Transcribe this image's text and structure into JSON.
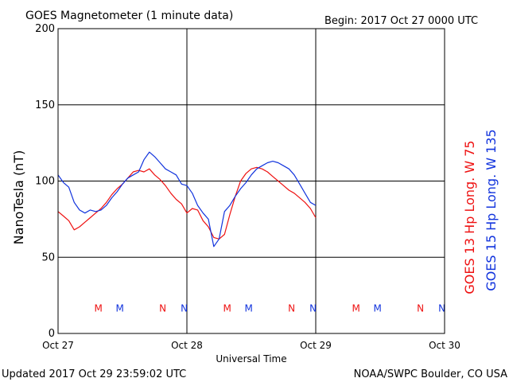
{
  "header": {
    "title": "GOES Magnetometer (1 minute data)",
    "begin": "Begin:  2017 Oct 27 0000 UTC"
  },
  "footer": {
    "updated": "Updated 2017 Oct 29 23:59:02 UTC",
    "source": "NOAA/SWPC Boulder, CO USA"
  },
  "colors": {
    "goes13": "#ee1111",
    "goes15": "#1133dd",
    "axis": "#000000"
  },
  "chart_data": {
    "type": "line",
    "title": "GOES Magnetometer (1 minute data)",
    "xlabel": "Universal Time",
    "ylabel": "NanoTesla (nT)",
    "xlim": [
      0,
      72
    ],
    "x_unit": "hours since 2017 Oct 27 0000 UTC",
    "x_ticks": [
      {
        "x": 0,
        "label": "Oct 27"
      },
      {
        "x": 24,
        "label": "Oct 28"
      },
      {
        "x": 48,
        "label": "Oct 29"
      },
      {
        "x": 72,
        "label": "Oct 30"
      }
    ],
    "ylim": [
      0,
      200
    ],
    "y_ticks": [
      0,
      50,
      100,
      150,
      200
    ],
    "grid": true,
    "series": [
      {
        "name": "GOES 13 Hp",
        "legend_label": "GOES 13 Hp  Long. W 75",
        "color": "#ee1111",
        "x": [
          0,
          1,
          2,
          3,
          4,
          5,
          6,
          7,
          8,
          9,
          10,
          11,
          12,
          13,
          14,
          15,
          16,
          17,
          18,
          19,
          20,
          21,
          22,
          23,
          24,
          25,
          26,
          27,
          28,
          29,
          30,
          31,
          32,
          33,
          34,
          35,
          36,
          37,
          38,
          39,
          40,
          41,
          42,
          43,
          44,
          45,
          46,
          47,
          48
        ],
        "y": [
          80,
          77,
          74,
          68,
          70,
          73,
          76,
          79,
          82,
          86,
          91,
          95,
          98,
          102,
          106,
          107,
          106,
          108,
          104,
          101,
          97,
          92,
          88,
          85,
          79,
          82,
          81,
          74,
          70,
          63,
          62,
          65,
          78,
          90,
          100,
          105,
          108,
          109,
          108,
          106,
          103,
          100,
          97,
          94,
          92,
          89,
          86,
          82,
          76
        ]
      },
      {
        "name": "GOES 15 Hp",
        "legend_label": "GOES 15 Hp  Long. W 135",
        "color": "#1133dd",
        "x": [
          0,
          1,
          2,
          3,
          4,
          5,
          6,
          7,
          8,
          9,
          10,
          11,
          12,
          13,
          14,
          15,
          16,
          17,
          18,
          19,
          20,
          21,
          22,
          23,
          24,
          25,
          26,
          27,
          28,
          29,
          30,
          31,
          32,
          33,
          34,
          35,
          36,
          37,
          38,
          39,
          40,
          41,
          42,
          43,
          44,
          45,
          46,
          47,
          48
        ],
        "y": [
          104,
          99,
          96,
          86,
          81,
          79,
          81,
          80,
          81,
          84,
          89,
          93,
          98,
          102,
          104,
          106,
          114,
          119,
          116,
          112,
          108,
          106,
          104,
          98,
          97,
          92,
          84,
          79,
          75,
          57,
          62,
          80,
          84,
          90,
          95,
          99,
          104,
          108,
          110,
          112,
          113,
          112,
          110,
          108,
          104,
          98,
          92,
          86,
          84
        ]
      }
    ],
    "markers": {
      "y": 17,
      "rows": [
        {
          "x": 7.5,
          "label": "M",
          "series": "GOES 13 Hp"
        },
        {
          "x": 11.5,
          "label": "M",
          "series": "GOES 15 Hp"
        },
        {
          "x": 19.5,
          "label": "N",
          "series": "GOES 13 Hp"
        },
        {
          "x": 23.5,
          "label": "N",
          "series": "GOES 15 Hp"
        },
        {
          "x": 31.5,
          "label": "M",
          "series": "GOES 13 Hp"
        },
        {
          "x": 35.5,
          "label": "M",
          "series": "GOES 15 Hp"
        },
        {
          "x": 43.5,
          "label": "N",
          "series": "GOES 13 Hp"
        },
        {
          "x": 47.5,
          "label": "N",
          "series": "GOES 15 Hp"
        },
        {
          "x": 55.5,
          "label": "M",
          "series": "GOES 13 Hp"
        },
        {
          "x": 59.5,
          "label": "M",
          "series": "GOES 15 Hp"
        },
        {
          "x": 67.5,
          "label": "N",
          "series": "GOES 13 Hp"
        },
        {
          "x": 71.5,
          "label": "N",
          "series": "GOES 15 Hp"
        }
      ]
    }
  }
}
